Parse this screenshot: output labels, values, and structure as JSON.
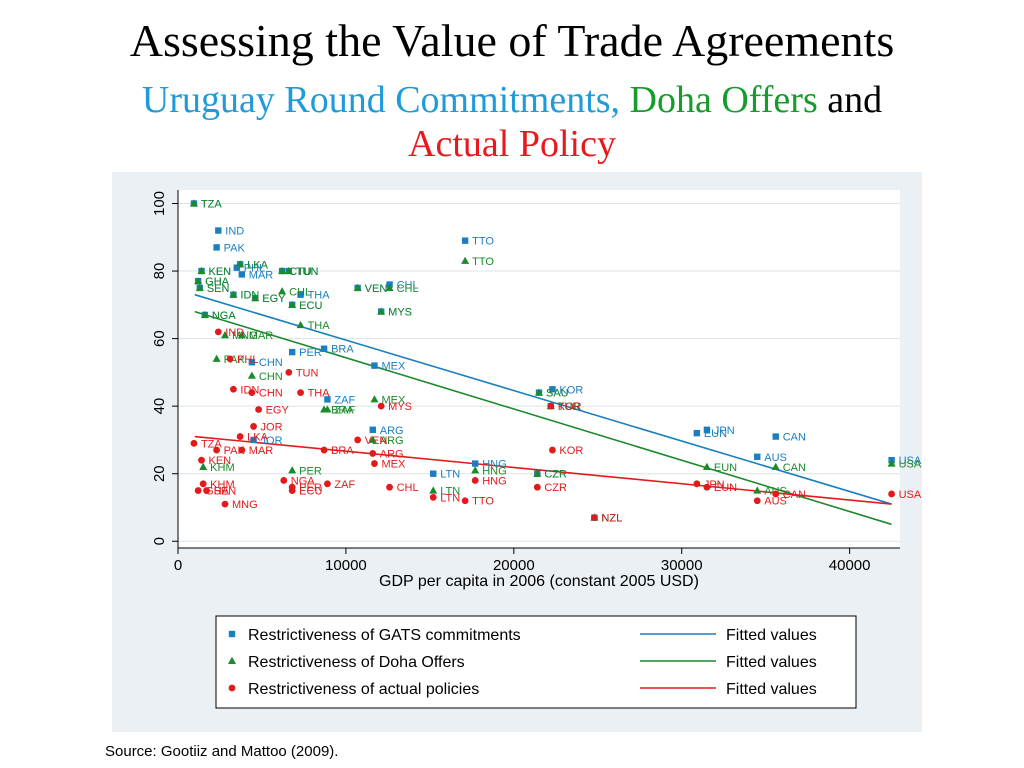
{
  "title": "Assessing the Value of Trade Agreements",
  "subtitle": {
    "part1": "Uruguay Round Commitments,",
    "part2": "Doha Offers",
    "part3": "and",
    "part4": "Actual Policy"
  },
  "source": "Source: Gootiiz and Mattoo (2009).",
  "colors": {
    "gats": "#1a7fc0",
    "doha": "#1b8a2c",
    "actual": "#e31a1c",
    "panel_bg": "#eaf0f4"
  },
  "chart_data": {
    "type": "scatter",
    "xlabel": "GDP per capita in 2006 (constant 2005 USD)",
    "ylabel": "",
    "xlim": [
      0,
      43000
    ],
    "ylim": [
      -2,
      104
    ],
    "x_ticks": [
      0,
      10000,
      20000,
      30000,
      40000
    ],
    "x_tick_labels": [
      "0",
      "10000",
      "20000",
      "30000",
      "40000"
    ],
    "y_ticks": [
      0,
      20,
      40,
      60,
      80,
      100
    ],
    "y_tick_labels": [
      "0",
      "20",
      "40",
      "60",
      "80",
      "100"
    ],
    "grid": "horizontal",
    "legend_position": "bottom",
    "series": [
      {
        "name": "Restrictiveness of GATS commitments",
        "marker": "square",
        "color": "#1a7fc0",
        "points": [
          {
            "label": "TZA",
            "x": 950,
            "y": 100
          },
          {
            "label": "IND",
            "x": 2400,
            "y": 92
          },
          {
            "label": "PAK",
            "x": 2300,
            "y": 87
          },
          {
            "label": "TTO",
            "x": 17100,
            "y": 89
          },
          {
            "label": "LKA",
            "x": 3700,
            "y": 82
          },
          {
            "label": "KEN",
            "x": 1400,
            "y": 80
          },
          {
            "label": "PHL",
            "x": 3500,
            "y": 81
          },
          {
            "label": "MAR",
            "x": 3800,
            "y": 79
          },
          {
            "label": "CTU",
            "x": 6200,
            "y": 80
          },
          {
            "label": "TUN",
            "x": 6600,
            "y": 80
          },
          {
            "label": "GHA",
            "x": 1200,
            "y": 77
          },
          {
            "label": "SEN",
            "x": 1300,
            "y": 75
          },
          {
            "label": "IDN",
            "x": 3300,
            "y": 73
          },
          {
            "label": "EGY",
            "x": 4600,
            "y": 72
          },
          {
            "label": "THA",
            "x": 7300,
            "y": 73
          },
          {
            "label": "VEN",
            "x": 10700,
            "y": 75
          },
          {
            "label": "CHL",
            "x": 12600,
            "y": 76
          },
          {
            "label": "ECU",
            "x": 6800,
            "y": 70
          },
          {
            "label": "MYS",
            "x": 12100,
            "y": 68
          },
          {
            "label": "NGA",
            "x": 1600,
            "y": 67
          },
          {
            "label": "BRA",
            "x": 8700,
            "y": 57
          },
          {
            "label": "PER",
            "x": 6800,
            "y": 56
          },
          {
            "label": "CHN",
            "x": 4400,
            "y": 53
          },
          {
            "label": "MEX",
            "x": 11700,
            "y": 52
          },
          {
            "label": "KOR",
            "x": 22300,
            "y": 45
          },
          {
            "label": "SAU",
            "x": 21500,
            "y": 44
          },
          {
            "label": "ZAF",
            "x": 8900,
            "y": 42
          },
          {
            "label": "TUR",
            "x": 22200,
            "y": 40
          },
          {
            "label": "ARG",
            "x": 11600,
            "y": 33
          },
          {
            "label": "JOR",
            "x": 4500,
            "y": 30
          },
          {
            "label": "JPN",
            "x": 31500,
            "y": 33
          },
          {
            "label": "EUN",
            "x": 30900,
            "y": 32
          },
          {
            "label": "CAN",
            "x": 35600,
            "y": 31
          },
          {
            "label": "AUS",
            "x": 34500,
            "y": 25
          },
          {
            "label": "USA",
            "x": 42500,
            "y": 24
          },
          {
            "label": "HNG",
            "x": 17700,
            "y": 23
          },
          {
            "label": "LTN",
            "x": 15200,
            "y": 20
          },
          {
            "label": "CZR",
            "x": 21400,
            "y": 20
          },
          {
            "label": "NZL",
            "x": 24800,
            "y": 7
          }
        ]
      },
      {
        "name": "Restrictiveness of Doha Offers",
        "marker": "triangle",
        "color": "#1b8a2c",
        "points": [
          {
            "label": "TZA",
            "x": 950,
            "y": 100
          },
          {
            "label": "TTO",
            "x": 17100,
            "y": 83
          },
          {
            "label": "KEN",
            "x": 1400,
            "y": 80
          },
          {
            "label": "LKA",
            "x": 3700,
            "y": 82
          },
          {
            "label": "CTU",
            "x": 6200,
            "y": 80
          },
          {
            "label": "TUN",
            "x": 6600,
            "y": 80
          },
          {
            "label": "GHA",
            "x": 1200,
            "y": 77
          },
          {
            "label": "SEN",
            "x": 1300,
            "y": 75
          },
          {
            "label": "IDN",
            "x": 3300,
            "y": 73
          },
          {
            "label": "EGY",
            "x": 4600,
            "y": 72
          },
          {
            "label": "CHL",
            "x": 6200,
            "y": 74
          },
          {
            "label": "VEN",
            "x": 10700,
            "y": 75
          },
          {
            "label": "CHL",
            "x": 12600,
            "y": 75
          },
          {
            "label": "ECU",
            "x": 6800,
            "y": 70
          },
          {
            "label": "MYS",
            "x": 12100,
            "y": 68
          },
          {
            "label": "NGA",
            "x": 1600,
            "y": 67
          },
          {
            "label": "THA",
            "x": 7300,
            "y": 64
          },
          {
            "label": "MNG",
            "x": 2800,
            "y": 61
          },
          {
            "label": "MAR",
            "x": 3800,
            "y": 61
          },
          {
            "label": "PAK",
            "x": 2300,
            "y": 54
          },
          {
            "label": "CHN",
            "x": 4400,
            "y": 49
          },
          {
            "label": "SAU",
            "x": 21500,
            "y": 44
          },
          {
            "label": "TUR",
            "x": 22200,
            "y": 40
          },
          {
            "label": "MEX",
            "x": 11700,
            "y": 42
          },
          {
            "label": "BRA",
            "x": 8700,
            "y": 39
          },
          {
            "label": "ZAF",
            "x": 8900,
            "y": 39
          },
          {
            "label": "ARG",
            "x": 11600,
            "y": 30
          },
          {
            "label": "KHM",
            "x": 1500,
            "y": 22
          },
          {
            "label": "PER",
            "x": 6800,
            "y": 21
          },
          {
            "label": "HNG",
            "x": 17700,
            "y": 21
          },
          {
            "label": "CZR",
            "x": 21400,
            "y": 20
          },
          {
            "label": "EUN",
            "x": 31500,
            "y": 22
          },
          {
            "label": "CAN",
            "x": 35600,
            "y": 22
          },
          {
            "label": "USA",
            "x": 42500,
            "y": 23
          },
          {
            "label": "LTN",
            "x": 15200,
            "y": 15
          },
          {
            "label": "AUS",
            "x": 34500,
            "y": 15
          },
          {
            "label": "NZL",
            "x": 24800,
            "y": 7
          }
        ]
      },
      {
        "name": "Restrictiveness of actual policies",
        "marker": "circle",
        "color": "#e31a1c",
        "points": [
          {
            "label": "IND",
            "x": 2400,
            "y": 62
          },
          {
            "label": "PHL",
            "x": 3100,
            "y": 54
          },
          {
            "label": "TUN",
            "x": 6600,
            "y": 50
          },
          {
            "label": "IDN",
            "x": 3300,
            "y": 45
          },
          {
            "label": "CHN",
            "x": 4400,
            "y": 44
          },
          {
            "label": "THA",
            "x": 7300,
            "y": 44
          },
          {
            "label": "MYS",
            "x": 12100,
            "y": 40
          },
          {
            "label": "KOR",
            "x": 22200,
            "y": 40
          },
          {
            "label": "EGY",
            "x": 4800,
            "y": 39
          },
          {
            "label": "JOR",
            "x": 4500,
            "y": 34
          },
          {
            "label": "LKA",
            "x": 3700,
            "y": 31
          },
          {
            "label": "TZA",
            "x": 950,
            "y": 29
          },
          {
            "label": "VEN",
            "x": 10700,
            "y": 30
          },
          {
            "label": "PAK",
            "x": 2300,
            "y": 27
          },
          {
            "label": "MAR",
            "x": 3800,
            "y": 27
          },
          {
            "label": "BRA",
            "x": 8700,
            "y": 27
          },
          {
            "label": "ARG",
            "x": 11600,
            "y": 26
          },
          {
            "label": "KOR",
            "x": 22300,
            "y": 27
          },
          {
            "label": "KEN",
            "x": 1400,
            "y": 24
          },
          {
            "label": "MEX",
            "x": 11700,
            "y": 23
          },
          {
            "label": "NGA",
            "x": 6300,
            "y": 18
          },
          {
            "label": "ZAF",
            "x": 8900,
            "y": 17
          },
          {
            "label": "KHM",
            "x": 1500,
            "y": 17
          },
          {
            "label": "PER",
            "x": 6800,
            "y": 16
          },
          {
            "label": "ECU",
            "x": 6800,
            "y": 15
          },
          {
            "label": "CHL",
            "x": 12600,
            "y": 16
          },
          {
            "label": "HNG",
            "x": 17700,
            "y": 18
          },
          {
            "label": "CZR",
            "x": 21400,
            "y": 16
          },
          {
            "label": "JPN",
            "x": 30900,
            "y": 17
          },
          {
            "label": "EUN",
            "x": 31500,
            "y": 16
          },
          {
            "label": "GHA",
            "x": 1200,
            "y": 15
          },
          {
            "label": "SEN",
            "x": 1700,
            "y": 15
          },
          {
            "label": "LTN",
            "x": 15200,
            "y": 13
          },
          {
            "label": "TTO",
            "x": 17100,
            "y": 12
          },
          {
            "label": "CAN",
            "x": 35600,
            "y": 14
          },
          {
            "label": "USA",
            "x": 42500,
            "y": 14
          },
          {
            "label": "AUS",
            "x": 34500,
            "y": 12
          },
          {
            "label": "MNG",
            "x": 2800,
            "y": 11
          },
          {
            "label": "NZL",
            "x": 24800,
            "y": 7
          }
        ]
      }
    ],
    "fitted_lines": [
      {
        "name": "Fitted values",
        "series": "Restrictiveness of GATS commitments",
        "color": "#1a7fc0",
        "x": [
          1000,
          42500
        ],
        "y": [
          73,
          11
        ]
      },
      {
        "name": "Fitted values",
        "series": "Restrictiveness of Doha Offers",
        "color": "#1b8a2c",
        "x": [
          1000,
          42500
        ],
        "y": [
          68,
          5
        ]
      },
      {
        "name": "Fitted values",
        "series": "Restrictiveness of actual policies",
        "color": "#e31a1c",
        "x": [
          1000,
          42500
        ],
        "y": [
          31,
          11
        ]
      }
    ],
    "legend": [
      {
        "marker_label": "Restrictiveness of GATS commitments",
        "line_label": "Fitted values"
      },
      {
        "marker_label": "Restrictiveness of Doha Offers",
        "line_label": "Fitted values"
      },
      {
        "marker_label": "Restrictiveness of actual policies",
        "line_label": "Fitted values"
      }
    ]
  }
}
